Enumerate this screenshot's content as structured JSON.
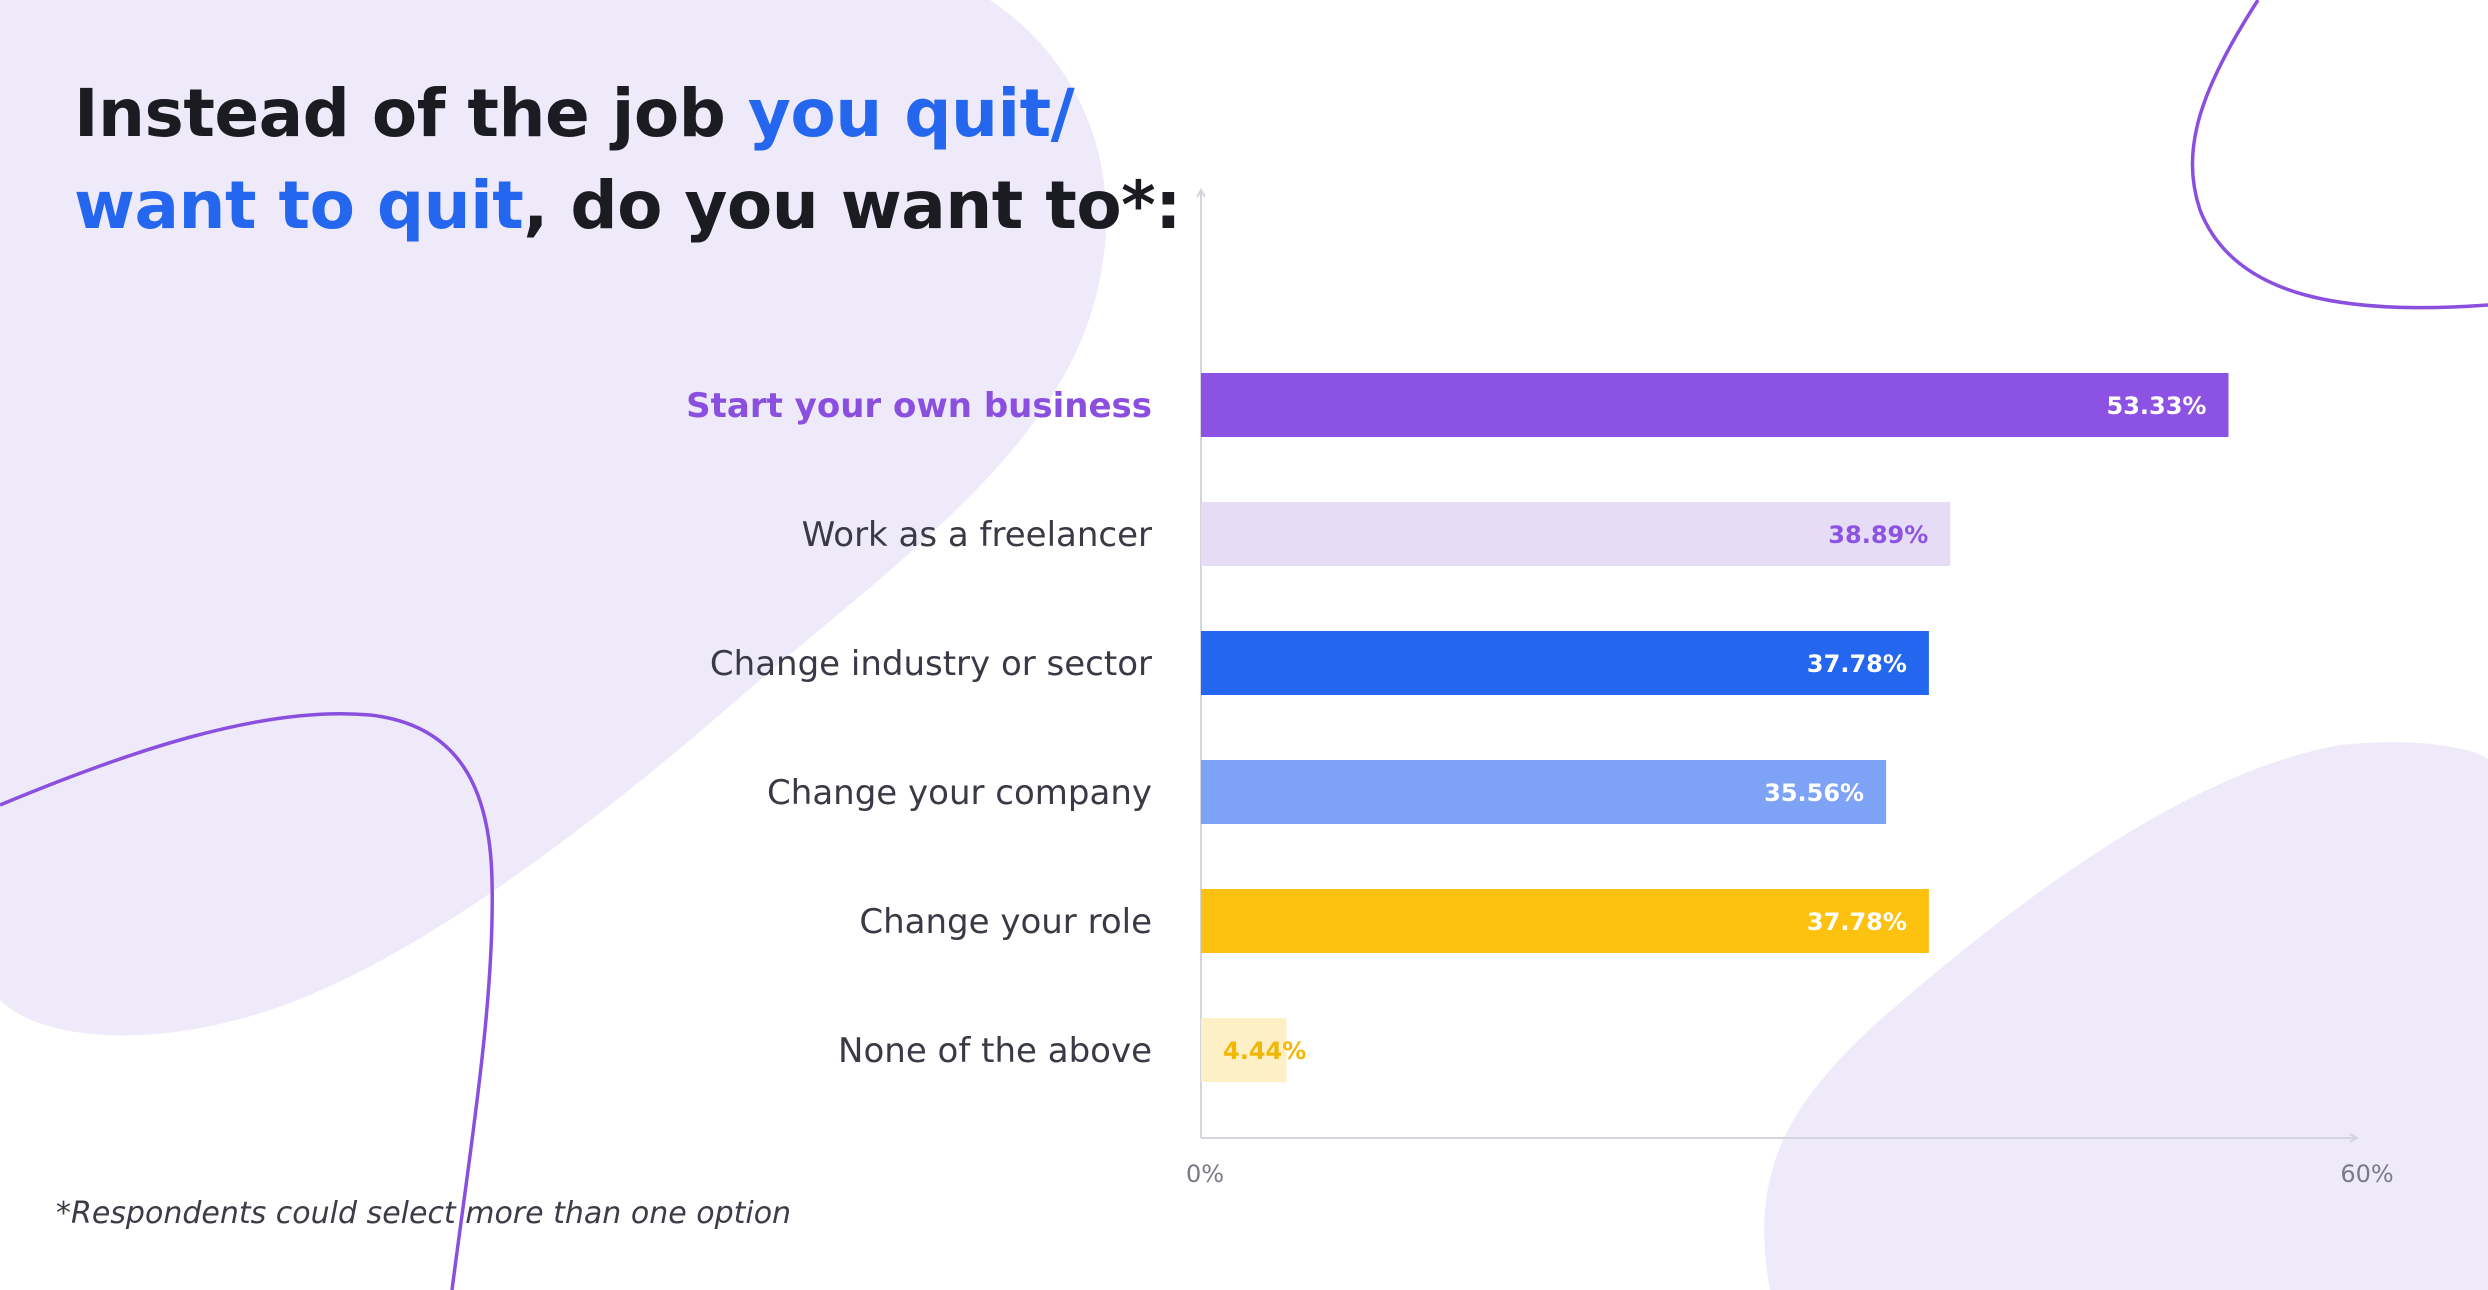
{
  "title": {
    "part1": "Instead of the job ",
    "highlight1": "you quit/",
    "highlight2": "want to quit",
    "part2": ", do you want to*:"
  },
  "footnote": "*Respondents could select more than one option",
  "colors": {
    "title_text": "#1b1b22",
    "title_highlight": "#2467ee",
    "background_blob": "#eeeaf9",
    "decorative_line": "#8b4fe0",
    "category_label": "#3a3a46",
    "highlighted_label": "#8b4fe0"
  },
  "chart_data": {
    "type": "bar",
    "orientation": "horizontal",
    "categories": [
      "Start your own business",
      "Work as a freelancer",
      "Change industry or sector",
      "Change your company",
      "Change your role",
      "None of the above"
    ],
    "values": [
      53.33,
      38.89,
      37.78,
      35.56,
      37.78,
      4.44
    ],
    "value_labels": [
      "53.33%",
      "38.89%",
      "37.78%",
      "35.56%",
      "37.78%",
      "4.44%"
    ],
    "bar_colors": [
      "#8b52e3",
      "#e7dcf6",
      "#2467ee",
      "#7ea3f6",
      "#fdc10f",
      "#fdf0c7"
    ],
    "label_colors": [
      "#ffffff",
      "#8b52e3",
      "#ffffff",
      "#ffffff",
      "#ffffff",
      "#f2b705"
    ],
    "highlighted_category": "Start your own business",
    "xlim": [
      0,
      60
    ],
    "x_ticks": [
      "0%",
      "60%"
    ],
    "title": "",
    "xlabel": "",
    "ylabel": "",
    "grid": false
  }
}
